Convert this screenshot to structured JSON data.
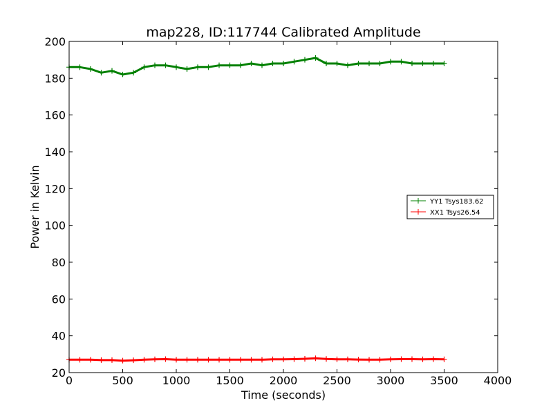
{
  "chart_data": {
    "type": "line",
    "title": "map228, ID:117744 Calibrated Amplitude",
    "xlabel": "Time (seconds)",
    "ylabel": "Power in Kelvin",
    "xlim": [
      0,
      4000
    ],
    "ylim": [
      20,
      200
    ],
    "x_ticks": [
      "0",
      "500",
      "1000",
      "1500",
      "2000",
      "2500",
      "3000",
      "3500",
      "4000"
    ],
    "y_ticks": [
      "20",
      "40",
      "60",
      "80",
      "100",
      "120",
      "140",
      "160",
      "180",
      "200"
    ],
    "grid": false,
    "legend_position": "right",
    "marker": "+",
    "series": [
      {
        "name": "YY1 Tsys183.62",
        "color": "#008000",
        "x": [
          0,
          100,
          200,
          300,
          400,
          500,
          600,
          700,
          800,
          900,
          1000,
          1100,
          1200,
          1300,
          1400,
          1500,
          1600,
          1700,
          1800,
          1900,
          2000,
          2100,
          2200,
          2300,
          2400,
          2500,
          2600,
          2700,
          2800,
          2900,
          3000,
          3100,
          3200,
          3300,
          3400,
          3500
        ],
        "y": [
          186,
          186,
          185,
          183,
          184,
          182,
          183,
          186,
          187,
          187,
          186,
          185,
          186,
          186,
          187,
          187,
          187,
          188,
          187,
          188,
          188,
          189,
          190,
          191,
          188,
          188,
          187,
          188,
          188,
          188,
          189,
          189,
          188,
          188,
          188,
          188
        ]
      },
      {
        "name": "XX1 Tsys26.54",
        "color": "#ff0000",
        "x": [
          0,
          100,
          200,
          300,
          400,
          500,
          600,
          700,
          800,
          900,
          1000,
          1100,
          1200,
          1300,
          1400,
          1500,
          1600,
          1700,
          1800,
          1900,
          2000,
          2100,
          2200,
          2300,
          2400,
          2500,
          2600,
          2700,
          2800,
          2900,
          3000,
          3100,
          3200,
          3300,
          3400,
          3500
        ],
        "y": [
          27,
          27,
          27,
          26.8,
          26.8,
          26.5,
          26.7,
          27,
          27.2,
          27.3,
          27,
          27,
          27,
          27,
          27,
          27,
          27,
          27,
          27,
          27.2,
          27.2,
          27.3,
          27.5,
          27.8,
          27.4,
          27.2,
          27.2,
          27.1,
          27,
          27,
          27.2,
          27.3,
          27.3,
          27.2,
          27.3,
          27.2
        ]
      }
    ]
  }
}
